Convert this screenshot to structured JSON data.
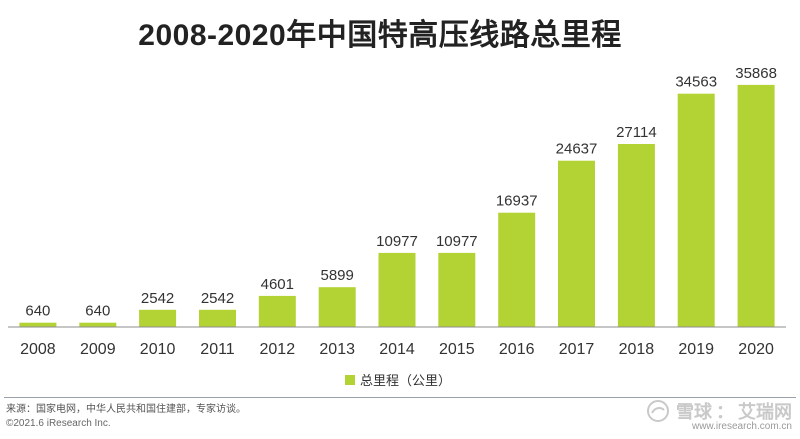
{
  "title": "2008-2020年中国特高压线路总里程",
  "chart_data": {
    "type": "bar",
    "categories": [
      "2008",
      "2009",
      "2010",
      "2011",
      "2012",
      "2013",
      "2014",
      "2015",
      "2016",
      "2017",
      "2018",
      "2019",
      "2020"
    ],
    "series": [
      {
        "name": "总里程（公里）",
        "values": [
          640,
          640,
          2542,
          2542,
          4601,
          5899,
          10977,
          10977,
          16937,
          24637,
          27114,
          34563,
          35868
        ]
      }
    ],
    "data_labels": true,
    "ylim": [
      0,
      40000
    ],
    "grid": false,
    "legend": "bottom-center",
    "bar_color": "#b3d233",
    "axis_color": "#8c8c8c"
  },
  "legend": {
    "label": "总里程（公里）"
  },
  "footer": {
    "source": "来源：国家电网，中华人民共和国住建部，专家访谈。",
    "copyright": "©2021.6 iResearch Inc.",
    "watermark_left": "雪球",
    "watermark_sep": "：",
    "watermark_right": "艾瑞网",
    "watermark_url": "www.iresearch.com.cn"
  }
}
